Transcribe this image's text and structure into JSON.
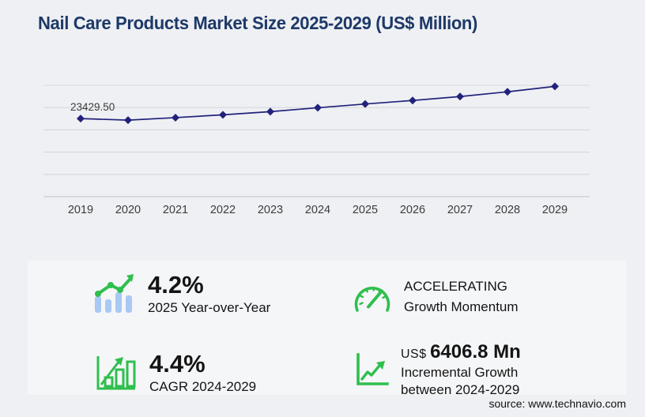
{
  "title": "Nail Care Products Market Size 2025-2029 (US$ Million)",
  "colors": {
    "title": "#1d3968",
    "line": "#22227c",
    "grid": "#d7d7db",
    "axis": "#c2c2c6",
    "page_bg": "#eff0f3",
    "panel_bg": "#f5f6f8",
    "green": "#2fbf4d",
    "light_blue": "#a9c8f3",
    "tick_text": "#3c3c3c"
  },
  "chart_data": {
    "type": "line",
    "title": "Nail Care Products Market Size 2025-2029 (US$ Million)",
    "x": [
      "2019",
      "2020",
      "2021",
      "2022",
      "2023",
      "2024",
      "2025",
      "2026",
      "2027",
      "2028",
      "2029"
    ],
    "series": [
      {
        "name": "market-size-us-million",
        "values": [
          23429.5,
          22950,
          23700,
          24550,
          25500,
          26670,
          27790,
          28850,
          30030,
          31450,
          33080
        ]
      }
    ],
    "annotations": [
      {
        "x": "2019",
        "text": "23429.50"
      }
    ],
    "xlabel": "",
    "ylabel": "",
    "ylim": [
      0,
      33400
    ],
    "grid": "horizontal",
    "gridline_count": 6,
    "legend": "none",
    "marker": "diamond"
  },
  "stats": {
    "yoy": {
      "value": "4.2%",
      "label": "2025 Year-over-Year",
      "icon": "bar-trend-arrow"
    },
    "momentum": {
      "line1": "ACCELERATING",
      "line2": "Growth Momentum",
      "icon": "speedometer"
    },
    "cagr": {
      "value": "4.4%",
      "label": "CAGR 2024-2029",
      "icon": "outlined-bar-growth"
    },
    "incremental": {
      "prefix": "US$",
      "value": "6406.8 Mn",
      "label_line1": "Incremental Growth",
      "label_line2": "between 2024-2029",
      "icon": "zigzag-growth"
    }
  },
  "source": "source: www.technavio.com"
}
